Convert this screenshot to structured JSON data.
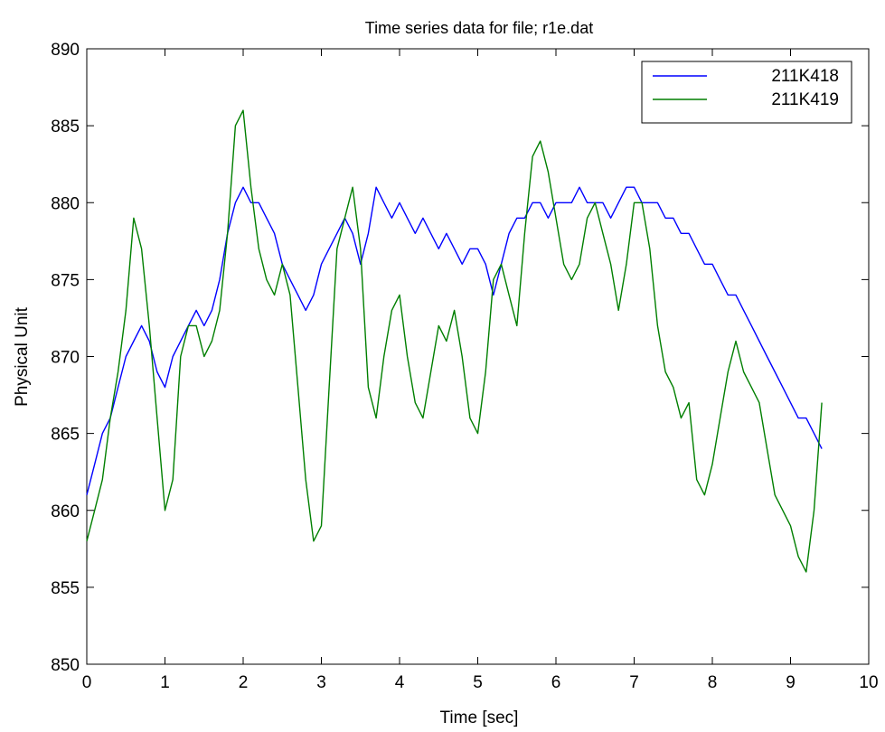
{
  "chart_data": {
    "type": "line",
    "title": "Time series data for file; r1e.dat",
    "xlabel": "Time [sec]",
    "ylabel": "Physical Unit",
    "xlim": [
      0,
      10
    ],
    "ylim": [
      850,
      890
    ],
    "xticks": [
      0,
      1,
      2,
      3,
      4,
      5,
      6,
      7,
      8,
      9,
      10
    ],
    "yticks": [
      850,
      855,
      860,
      865,
      870,
      875,
      880,
      885,
      890
    ],
    "grid": false,
    "legend_position": "top-right",
    "series": [
      {
        "name": "211K418",
        "color": "#0000ff",
        "x": [
          0,
          0.1,
          0.2,
          0.3,
          0.4,
          0.5,
          0.6,
          0.7,
          0.8,
          0.9,
          1.0,
          1.1,
          1.2,
          1.3,
          1.4,
          1.5,
          1.6,
          1.7,
          1.8,
          1.9,
          2.0,
          2.1,
          2.2,
          2.3,
          2.4,
          2.5,
          2.6,
          2.7,
          2.8,
          2.9,
          3.0,
          3.1,
          3.2,
          3.3,
          3.4,
          3.5,
          3.6,
          3.7,
          3.8,
          3.9,
          4.0,
          4.1,
          4.2,
          4.3,
          4.4,
          4.5,
          4.6,
          4.7,
          4.8,
          4.9,
          5.0,
          5.1,
          5.2,
          5.3,
          5.4,
          5.5,
          5.6,
          5.7,
          5.8,
          5.9,
          6.0,
          6.1,
          6.2,
          6.3,
          6.4,
          6.5,
          6.6,
          6.7,
          6.8,
          6.9,
          7.0,
          7.1,
          7.2,
          7.3,
          7.4,
          7.5,
          7.6,
          7.7,
          7.8,
          7.9,
          8.0,
          8.1,
          8.2,
          8.3,
          8.4,
          8.5,
          8.6,
          8.7,
          8.8,
          8.9,
          9.0,
          9.1,
          9.2,
          9.3,
          9.4
        ],
        "values": [
          861,
          863,
          865,
          866,
          868,
          870,
          871,
          872,
          871,
          869,
          868,
          870,
          871,
          872,
          873,
          872,
          873,
          875,
          878,
          880,
          881,
          880,
          880,
          879,
          878,
          876,
          875,
          874,
          873,
          874,
          876,
          877,
          878,
          879,
          878,
          876,
          878,
          881,
          880,
          879,
          880,
          879,
          878,
          879,
          878,
          877,
          878,
          877,
          876,
          877,
          877,
          876,
          874,
          876,
          878,
          879,
          879,
          880,
          880,
          879,
          880,
          880,
          880,
          881,
          880,
          880,
          880,
          879,
          880,
          881,
          881,
          880,
          880,
          880,
          879,
          879,
          878,
          878,
          877,
          876,
          876,
          875,
          874,
          874,
          873,
          872,
          871,
          870,
          869,
          868,
          867,
          866,
          866,
          865,
          864
        ]
      },
      {
        "name": "211K419",
        "color": "#007f00",
        "x": [
          0,
          0.1,
          0.2,
          0.3,
          0.4,
          0.5,
          0.6,
          0.7,
          0.8,
          0.9,
          1.0,
          1.1,
          1.2,
          1.3,
          1.4,
          1.5,
          1.6,
          1.7,
          1.8,
          1.9,
          2.0,
          2.1,
          2.2,
          2.3,
          2.4,
          2.5,
          2.6,
          2.7,
          2.8,
          2.9,
          3.0,
          3.1,
          3.2,
          3.3,
          3.4,
          3.5,
          3.6,
          3.7,
          3.8,
          3.9,
          4.0,
          4.1,
          4.2,
          4.3,
          4.4,
          4.5,
          4.6,
          4.7,
          4.8,
          4.9,
          5.0,
          5.1,
          5.2,
          5.3,
          5.4,
          5.5,
          5.6,
          5.7,
          5.8,
          5.9,
          6.0,
          6.1,
          6.2,
          6.3,
          6.4,
          6.5,
          6.6,
          6.7,
          6.8,
          6.9,
          7.0,
          7.1,
          7.2,
          7.3,
          7.4,
          7.5,
          7.6,
          7.7,
          7.8,
          7.9,
          8.0,
          8.1,
          8.2,
          8.3,
          8.4,
          8.5,
          8.6,
          8.7,
          8.8,
          8.9,
          9.0,
          9.1,
          9.2,
          9.3,
          9.4
        ],
        "values": [
          858,
          860,
          862,
          866,
          869,
          873,
          879,
          877,
          872,
          866,
          860,
          862,
          870,
          872,
          872,
          870,
          871,
          873,
          878,
          885,
          886,
          881,
          877,
          875,
          874,
          876,
          874,
          868,
          862,
          858,
          859,
          868,
          877,
          879,
          881,
          877,
          868,
          866,
          870,
          873,
          874,
          870,
          867,
          866,
          869,
          872,
          871,
          873,
          870,
          866,
          865,
          869,
          875,
          876,
          874,
          872,
          878,
          883,
          884,
          882,
          879,
          876,
          875,
          876,
          879,
          880,
          878,
          876,
          873,
          876,
          880,
          880,
          877,
          872,
          869,
          868,
          866,
          867,
          862,
          861,
          863,
          866,
          869,
          871,
          869,
          868,
          867,
          864,
          861,
          860,
          859,
          857,
          856,
          860,
          867
        ]
      }
    ]
  }
}
